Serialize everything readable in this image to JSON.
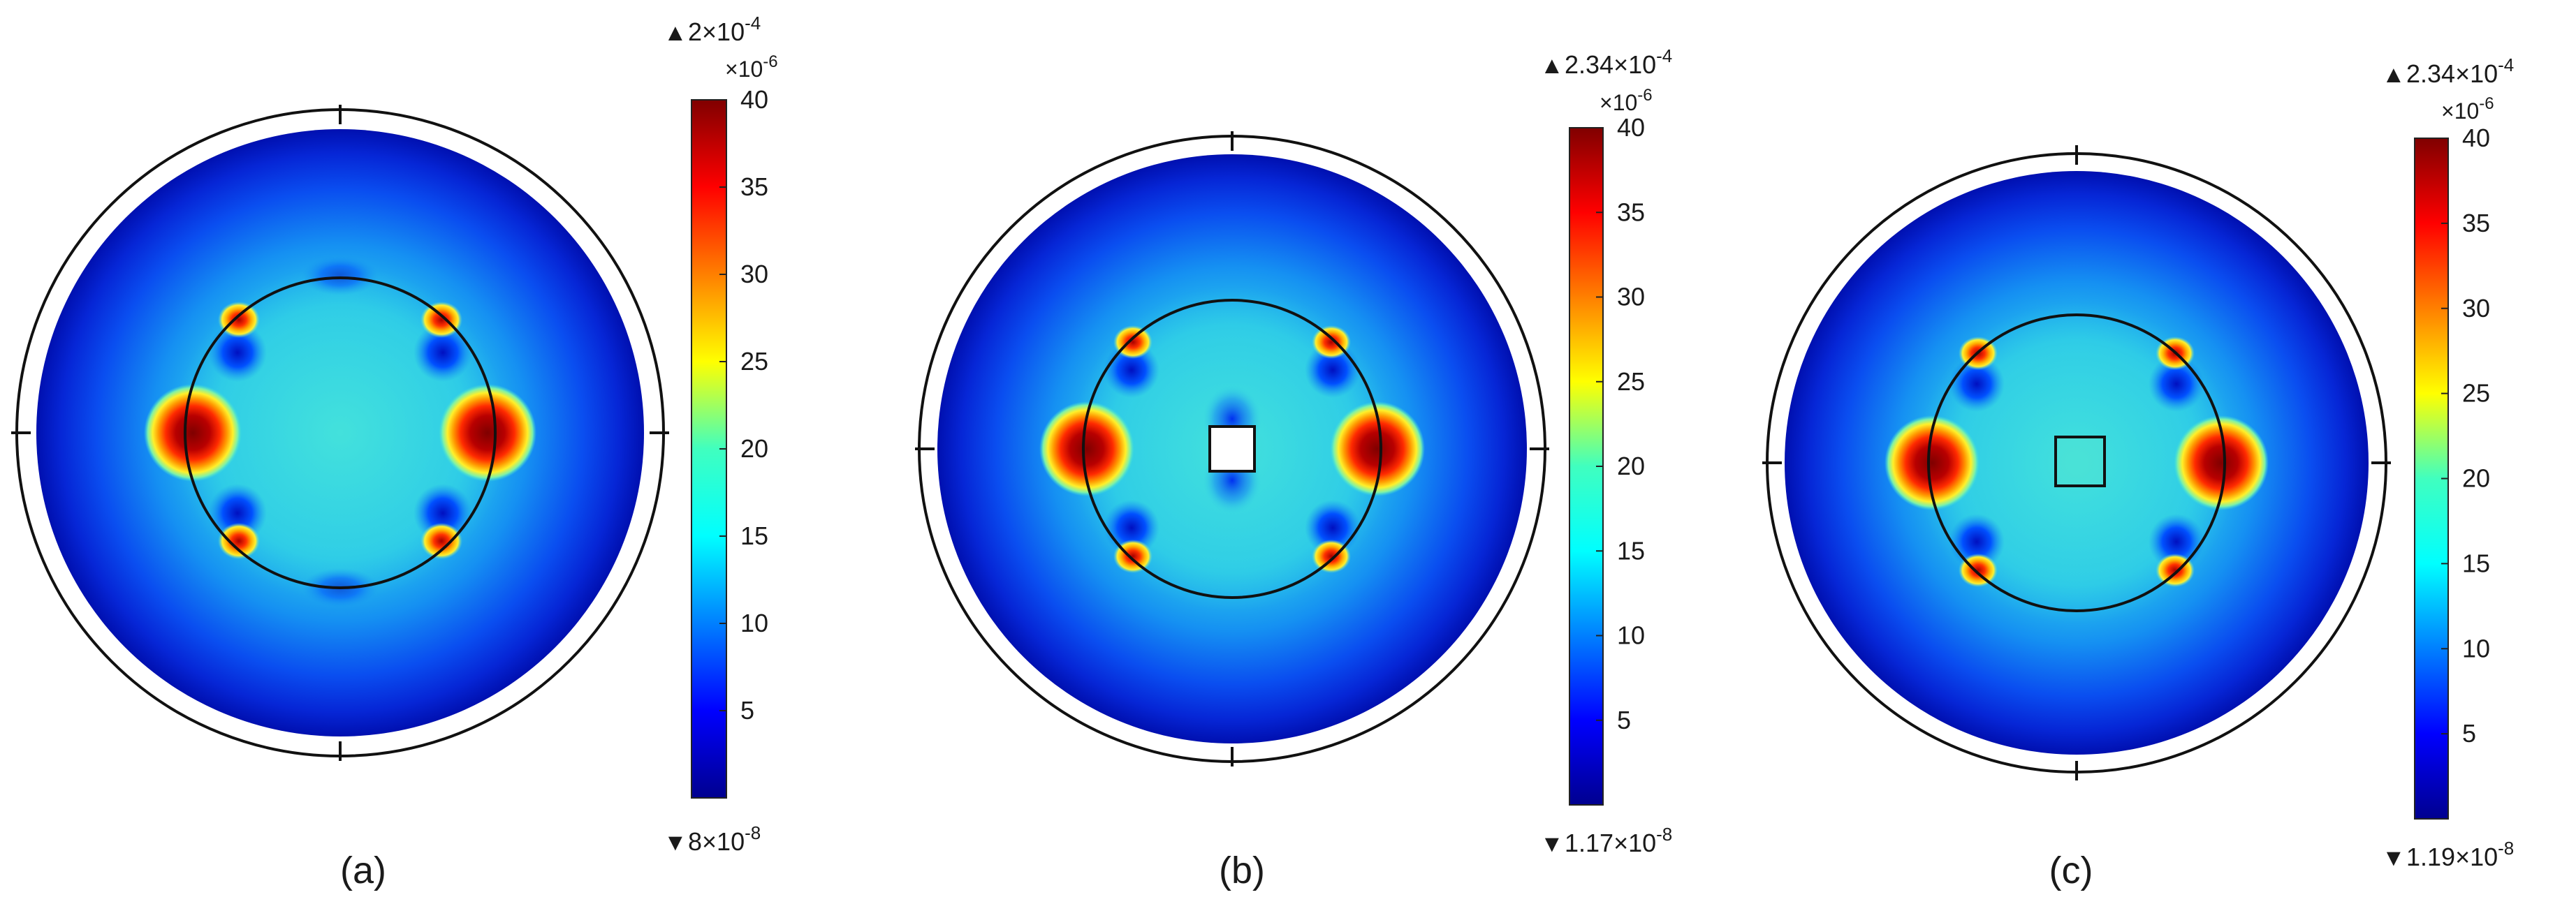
{
  "panels": [
    {
      "id": "a",
      "caption": "(a)",
      "max_label": "2×10",
      "max_exp": "-4",
      "min_label": "8×10",
      "min_exp": "-8",
      "scale_label": "×10",
      "scale_exp": "-6",
      "ticks": [
        "40",
        "35",
        "30",
        "25",
        "20",
        "15",
        "10",
        "5"
      ],
      "square_hole": "none"
    },
    {
      "id": "b",
      "caption": "(b)",
      "max_label": "2.34×10",
      "max_exp": "-4",
      "min_label": "1.17×10",
      "min_exp": "-8",
      "scale_label": "×10",
      "scale_exp": "-6",
      "ticks": [
        "40",
        "35",
        "30",
        "25",
        "20",
        "15",
        "10",
        "5"
      ],
      "square_hole": "white"
    },
    {
      "id": "c",
      "caption": "(c)",
      "max_label": "2.34×10",
      "max_exp": "-4",
      "min_label": "1.19×10",
      "min_exp": "-8",
      "scale_label": "×10",
      "scale_exp": "-6",
      "ticks": [
        "40",
        "35",
        "30",
        "25",
        "20",
        "15",
        "10",
        "5"
      ],
      "square_hole": "outlined"
    }
  ],
  "colors": {
    "dark_blue": "#00008f",
    "blue": "#0050ff",
    "cyan": "#29e0e6",
    "light_teal": "#5fe6cf",
    "yellow": "#ffef2a",
    "orange": "#ff8a00",
    "red": "#e00000",
    "dark_red": "#7f0000",
    "outline": "#111111"
  }
}
